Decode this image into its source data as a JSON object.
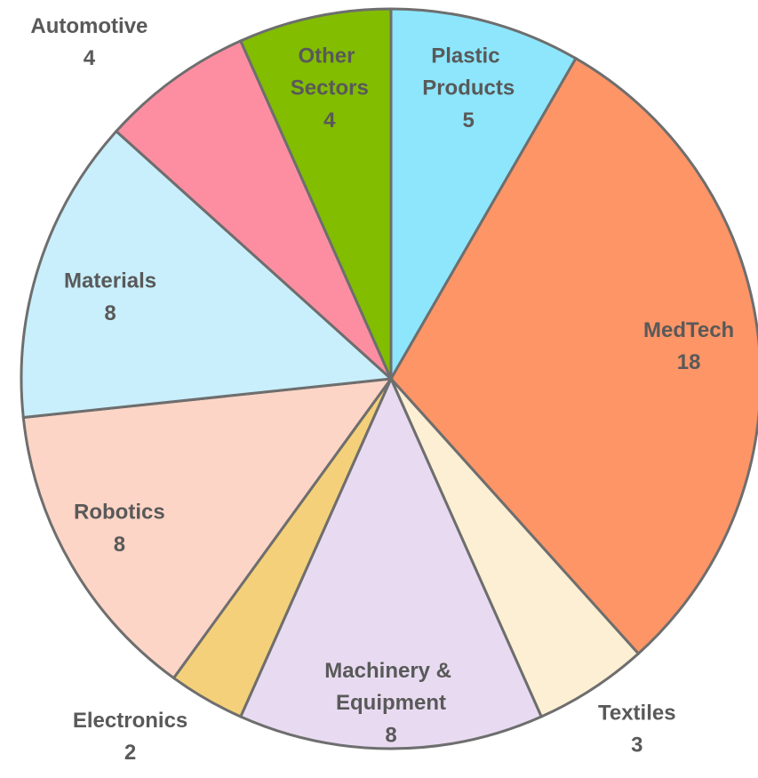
{
  "chart_data": {
    "type": "pie",
    "categories": [
      "Plastic Products",
      "MedTech",
      "Textiles",
      "Machinery & Equipment",
      "Electronics",
      "Robotics",
      "Materials",
      "Automotive",
      "Other Sectors"
    ],
    "values": [
      5,
      18,
      3,
      8,
      2,
      8,
      8,
      4,
      4
    ],
    "colors": [
      "#8de6fc",
      "#fe9566",
      "#fdefd3",
      "#e8dbf1",
      "#f5d07a",
      "#fdd5c6",
      "#c9effc",
      "#fd8ea2",
      "#82bd00"
    ]
  }
}
